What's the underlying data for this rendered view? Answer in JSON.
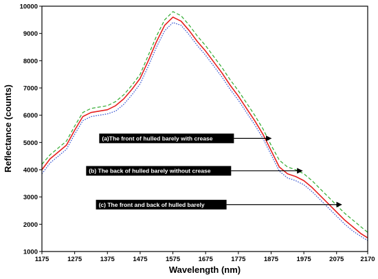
{
  "chart_data": {
    "type": "line",
    "title": "",
    "xlabel": "Wavelength (nm)",
    "ylabel": "Reflectance (counts)",
    "xlim": [
      1175,
      2170
    ],
    "ylim": [
      1000,
      10000
    ],
    "xticks": [
      1175,
      1275,
      1375,
      1475,
      1575,
      1675,
      1775,
      1875,
      1975,
      2075,
      2170
    ],
    "yticks": [
      1000,
      2000,
      3000,
      4000,
      5000,
      6000,
      7000,
      8000,
      9000,
      10000
    ],
    "grid": false,
    "series": [
      {
        "name": "",
        "color": "#2eaa2e",
        "style": "dashed",
        "x": [
          1175,
          1200,
          1225,
          1250,
          1275,
          1300,
          1325,
          1350,
          1375,
          1400,
          1425,
          1450,
          1475,
          1500,
          1525,
          1550,
          1575,
          1600,
          1625,
          1650,
          1675,
          1700,
          1725,
          1750,
          1775,
          1800,
          1825,
          1850,
          1875,
          1900,
          1925,
          1950,
          1975,
          2000,
          2025,
          2050,
          2075,
          2100,
          2125,
          2150,
          2170
        ],
        "y": [
          4200,
          4550,
          4800,
          5050,
          5600,
          6100,
          6250,
          6300,
          6350,
          6500,
          6750,
          7100,
          7500,
          8200,
          8900,
          9500,
          9800,
          9650,
          9300,
          8900,
          8550,
          8150,
          7750,
          7300,
          6900,
          6450,
          6000,
          5500,
          4900,
          4350,
          4100,
          4000,
          3850,
          3600,
          3300,
          3000,
          2700,
          2400,
          2150,
          1900,
          1700
        ]
      },
      {
        "name": "",
        "color": "#e61e1e",
        "style": "solid",
        "x": [
          1175,
          1200,
          1225,
          1250,
          1275,
          1300,
          1325,
          1350,
          1375,
          1400,
          1425,
          1450,
          1475,
          1500,
          1525,
          1550,
          1575,
          1600,
          1625,
          1650,
          1675,
          1700,
          1725,
          1750,
          1775,
          1800,
          1825,
          1850,
          1875,
          1900,
          1925,
          1950,
          1975,
          2000,
          2025,
          2050,
          2075,
          2100,
          2125,
          2150,
          2170
        ],
        "y": [
          4000,
          4400,
          4650,
          4900,
          5450,
          5950,
          6100,
          6150,
          6200,
          6350,
          6600,
          6950,
          7350,
          8000,
          8700,
          9300,
          9600,
          9450,
          9100,
          8700,
          8350,
          7950,
          7550,
          7100,
          6700,
          6250,
          5800,
          5300,
          4700,
          4100,
          3850,
          3750,
          3600,
          3350,
          3050,
          2750,
          2450,
          2150,
          1900,
          1650,
          1500
        ]
      },
      {
        "name": "",
        "color": "#3c5ad2",
        "style": "dotted",
        "x": [
          1175,
          1200,
          1225,
          1250,
          1275,
          1300,
          1325,
          1350,
          1375,
          1400,
          1425,
          1450,
          1475,
          1500,
          1525,
          1550,
          1575,
          1600,
          1625,
          1650,
          1675,
          1700,
          1725,
          1750,
          1775,
          1800,
          1825,
          1850,
          1875,
          1900,
          1925,
          1950,
          1975,
          2000,
          2025,
          2050,
          2075,
          2100,
          2125,
          2150,
          2170
        ],
        "y": [
          3850,
          4250,
          4500,
          4750,
          5300,
          5800,
          5950,
          6000,
          6050,
          6150,
          6400,
          6750,
          7150,
          7800,
          8500,
          9100,
          9400,
          9300,
          8950,
          8550,
          8200,
          7800,
          7400,
          6950,
          6550,
          6100,
          5650,
          5150,
          4550,
          3950,
          3700,
          3600,
          3450,
          3200,
          2900,
          2600,
          2300,
          2000,
          1750,
          1550,
          1400
        ]
      }
    ],
    "annotations": [
      {
        "text": "(a)The front of hulled barely with crease",
        "box_x": 1350,
        "box_y": 5150,
        "arrow_to_x": 1875,
        "arrow_to_y": 5150
      },
      {
        "text": "(b) The back of hulled barely without crease",
        "box_x": 1310,
        "box_y": 3960,
        "arrow_to_x": 1970,
        "arrow_to_y": 3960
      },
      {
        "text": "(c) The front and back of hulled barely",
        "box_x": 1340,
        "box_y": 2720,
        "arrow_to_x": 2090,
        "arrow_to_y": 2720
      }
    ]
  }
}
